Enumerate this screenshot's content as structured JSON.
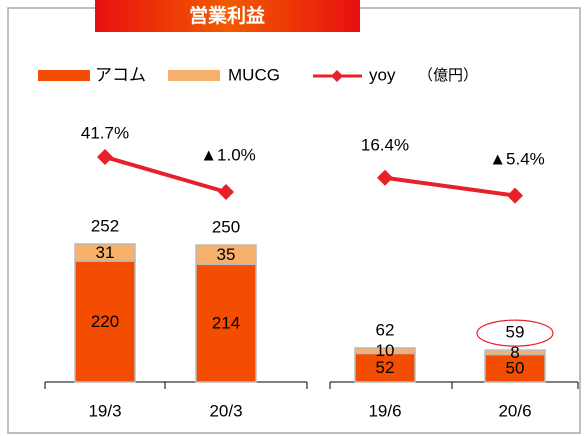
{
  "chart_data": {
    "type": "bar",
    "title": "営業利益",
    "unit": "（億円）",
    "categories": [
      "19/3",
      "20/3",
      "19/6",
      "20/6"
    ],
    "series": [
      {
        "name": "アコム",
        "color": "#f24d00",
        "values": [
          220,
          214,
          52,
          50
        ]
      },
      {
        "name": "MUCG",
        "color": "#f8b16c",
        "values": [
          31,
          35,
          10,
          8
        ]
      }
    ],
    "totals": [
      252,
      250,
      62,
      59
    ],
    "yoy": {
      "name": "yoy",
      "color": "#e8202a",
      "values": [
        41.7,
        -1.0,
        16.4,
        -5.4
      ],
      "value_labels": [
        "41.7%",
        "▲1.0%",
        "16.4%",
        "▲5.4%"
      ]
    }
  }
}
